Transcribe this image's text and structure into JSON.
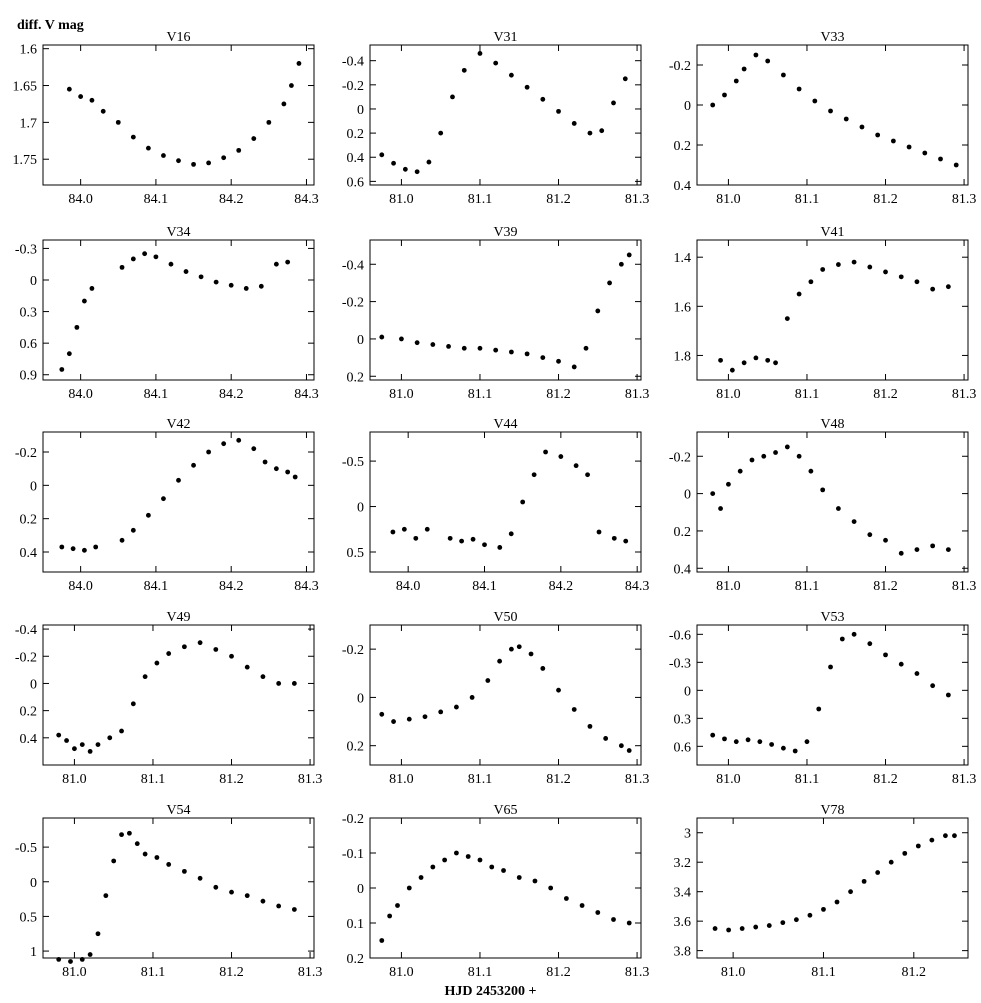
{
  "figure": {
    "ylabel": "diff. V mag",
    "xlabel": "HJD 2453200 +"
  },
  "chart_data": [
    {
      "type": "scatter",
      "title": "V16",
      "xlim": [
        83.95,
        84.31
      ],
      "ylim": [
        1.785,
        1.595
      ],
      "xticks": [
        84.0,
        84.1,
        84.2,
        84.3
      ],
      "xticklabels": [
        "84.0",
        "84.1",
        "84.2",
        "84.3"
      ],
      "yticks": [
        1.6,
        1.65,
        1.7,
        1.75
      ],
      "yticklabels": [
        "1.6",
        "1.65",
        "1.7",
        "1.75"
      ],
      "x": [
        83.985,
        84.0,
        84.015,
        84.03,
        84.05,
        84.07,
        84.09,
        84.11,
        84.13,
        84.15,
        84.17,
        84.19,
        84.21,
        84.23,
        84.25,
        84.27,
        84.28,
        84.29
      ],
      "y": [
        1.655,
        1.665,
        1.67,
        1.685,
        1.7,
        1.72,
        1.735,
        1.745,
        1.752,
        1.757,
        1.755,
        1.748,
        1.738,
        1.722,
        1.7,
        1.675,
        1.65,
        1.62
      ]
    },
    {
      "type": "scatter",
      "title": "V31",
      "xlim": [
        80.96,
        81.305
      ],
      "ylim": [
        0.63,
        -0.53
      ],
      "xticks": [
        81.0,
        81.1,
        81.2,
        81.3
      ],
      "xticklabels": [
        "81.0",
        "81.1",
        "81.2",
        "81.3"
      ],
      "yticks": [
        -0.4,
        -0.2,
        0,
        0.2,
        0.4,
        0.6
      ],
      "yticklabels": [
        "-0.4",
        "-0.2",
        "0",
        "0.2",
        "0.4",
        "0.6"
      ],
      "x": [
        80.975,
        80.99,
        81.005,
        81.02,
        81.035,
        81.05,
        81.065,
        81.08,
        81.1,
        81.12,
        81.14,
        81.16,
        81.18,
        81.2,
        81.22,
        81.24,
        81.255,
        81.27,
        81.285
      ],
      "y": [
        0.38,
        0.45,
        0.5,
        0.52,
        0.44,
        0.2,
        -0.1,
        -0.32,
        -0.46,
        -0.38,
        -0.28,
        -0.18,
        -0.08,
        0.02,
        0.12,
        0.2,
        0.18,
        -0.05,
        -0.25
      ]
    },
    {
      "type": "scatter",
      "title": "V33",
      "xlim": [
        80.96,
        81.305
      ],
      "ylim": [
        0.4,
        -0.3
      ],
      "xticks": [
        81.0,
        81.1,
        81.2,
        81.3
      ],
      "xticklabels": [
        "81.0",
        "81.1",
        "81.2",
        "81.3"
      ],
      "yticks": [
        -0.2,
        0,
        0.2,
        0.4
      ],
      "yticklabels": [
        "-0.2",
        "0",
        "0.2",
        "0.4"
      ],
      "x": [
        80.98,
        80.995,
        81.01,
        81.02,
        81.035,
        81.05,
        81.07,
        81.09,
        81.11,
        81.13,
        81.15,
        81.17,
        81.19,
        81.21,
        81.23,
        81.25,
        81.27,
        81.29
      ],
      "y": [
        0.0,
        -0.05,
        -0.12,
        -0.18,
        -0.25,
        -0.22,
        -0.15,
        -0.08,
        -0.02,
        0.03,
        0.07,
        0.11,
        0.15,
        0.18,
        0.21,
        0.24,
        0.27,
        0.3
      ]
    },
    {
      "type": "scatter",
      "title": "V34",
      "xlim": [
        83.95,
        84.31
      ],
      "ylim": [
        0.95,
        -0.38
      ],
      "xticks": [
        84.0,
        84.1,
        84.2,
        84.3
      ],
      "xticklabels": [
        "84.0",
        "84.1",
        "84.2",
        "84.3"
      ],
      "yticks": [
        -0.3,
        0,
        0.3,
        0.6,
        0.9
      ],
      "yticklabels": [
        "-0.3",
        "0",
        "0.3",
        "0.6",
        "0.9"
      ],
      "x": [
        83.975,
        83.985,
        83.995,
        84.005,
        84.015,
        84.055,
        84.07,
        84.085,
        84.1,
        84.12,
        84.14,
        84.16,
        84.18,
        84.2,
        84.22,
        84.24,
        84.26,
        84.275
      ],
      "y": [
        0.85,
        0.7,
        0.45,
        0.2,
        0.08,
        -0.12,
        -0.2,
        -0.25,
        -0.22,
        -0.15,
        -0.08,
        -0.03,
        0.02,
        0.05,
        0.08,
        0.06,
        -0.15,
        -0.17
      ]
    },
    {
      "type": "scatter",
      "title": "V39",
      "xlim": [
        80.96,
        81.305
      ],
      "ylim": [
        0.22,
        -0.53
      ],
      "xticks": [
        81.0,
        81.1,
        81.2,
        81.3
      ],
      "xticklabels": [
        "81.0",
        "81.1",
        "81.2",
        "81.3"
      ],
      "yticks": [
        -0.4,
        -0.2,
        0,
        0.2
      ],
      "yticklabels": [
        "-0.4",
        "-0.2",
        "0",
        "0.2"
      ],
      "x": [
        80.975,
        81.0,
        81.02,
        81.04,
        81.06,
        81.08,
        81.1,
        81.12,
        81.14,
        81.16,
        81.18,
        81.2,
        81.22,
        81.235,
        81.25,
        81.265,
        81.28,
        81.29
      ],
      "y": [
        -0.01,
        0.0,
        0.02,
        0.03,
        0.04,
        0.05,
        0.05,
        0.06,
        0.07,
        0.08,
        0.1,
        0.12,
        0.15,
        0.05,
        -0.15,
        -0.3,
        -0.4,
        -0.45
      ]
    },
    {
      "type": "scatter",
      "title": "V41",
      "xlim": [
        80.96,
        81.305
      ],
      "ylim": [
        1.9,
        1.33
      ],
      "xticks": [
        81.0,
        81.1,
        81.2,
        81.3
      ],
      "xticklabels": [
        "81.0",
        "81.1",
        "81.2",
        "81.3"
      ],
      "yticks": [
        1.4,
        1.6,
        1.8
      ],
      "yticklabels": [
        "1.4",
        "1.6",
        "1.8"
      ],
      "x": [
        80.99,
        81.005,
        81.02,
        81.035,
        81.05,
        81.06,
        81.075,
        81.09,
        81.105,
        81.12,
        81.14,
        81.16,
        81.18,
        81.2,
        81.22,
        81.24,
        81.26,
        81.28
      ],
      "y": [
        1.82,
        1.86,
        1.83,
        1.81,
        1.82,
        1.83,
        1.65,
        1.55,
        1.5,
        1.45,
        1.43,
        1.42,
        1.44,
        1.46,
        1.48,
        1.5,
        1.53,
        1.52
      ]
    },
    {
      "type": "scatter",
      "title": "V42",
      "xlim": [
        83.95,
        84.31
      ],
      "ylim": [
        0.52,
        -0.32
      ],
      "xticks": [
        84.0,
        84.1,
        84.2,
        84.3
      ],
      "xticklabels": [
        "84.0",
        "84.1",
        "84.2",
        "84.3"
      ],
      "yticks": [
        -0.2,
        0,
        0.2,
        0.4
      ],
      "yticklabels": [
        "-0.2",
        "0",
        "0.2",
        "0.4"
      ],
      "x": [
        83.975,
        83.99,
        84.005,
        84.02,
        84.055,
        84.07,
        84.09,
        84.11,
        84.13,
        84.15,
        84.17,
        84.19,
        84.21,
        84.23,
        84.245,
        84.26,
        84.275,
        84.285
      ],
      "y": [
        0.37,
        0.38,
        0.39,
        0.37,
        0.33,
        0.27,
        0.18,
        0.08,
        -0.03,
        -0.12,
        -0.2,
        -0.25,
        -0.27,
        -0.22,
        -0.14,
        -0.1,
        -0.08,
        -0.05
      ]
    },
    {
      "type": "scatter",
      "title": "V44",
      "xlim": [
        83.95,
        84.305
      ],
      "ylim": [
        0.72,
        -0.82
      ],
      "xticks": [
        84.0,
        84.1,
        84.2,
        84.3
      ],
      "xticklabels": [
        "84.0",
        "84.1",
        "84.2",
        "84.3"
      ],
      "yticks": [
        -0.5,
        0,
        0.5
      ],
      "yticklabels": [
        "-0.5",
        "0",
        "0.5"
      ],
      "x": [
        83.98,
        83.995,
        84.01,
        84.025,
        84.055,
        84.07,
        84.085,
        84.1,
        84.12,
        84.135,
        84.15,
        84.165,
        84.18,
        84.2,
        84.22,
        84.235,
        84.25,
        84.27,
        84.285
      ],
      "y": [
        0.28,
        0.25,
        0.35,
        0.25,
        0.35,
        0.38,
        0.36,
        0.42,
        0.45,
        0.3,
        -0.05,
        -0.35,
        -0.6,
        -0.55,
        -0.45,
        -0.35,
        0.28,
        0.35,
        0.38
      ]
    },
    {
      "type": "scatter",
      "title": "V48",
      "xlim": [
        80.96,
        81.305
      ],
      "ylim": [
        0.42,
        -0.33
      ],
      "xticks": [
        81.0,
        81.1,
        81.2,
        81.3
      ],
      "xticklabels": [
        "81.0",
        "81.1",
        "81.2",
        "81.3"
      ],
      "yticks": [
        -0.2,
        0,
        0.2,
        0.4
      ],
      "yticklabels": [
        "-0.2",
        "0",
        "0.2",
        "0.4"
      ],
      "x": [
        80.98,
        80.99,
        81.0,
        81.015,
        81.03,
        81.045,
        81.06,
        81.075,
        81.09,
        81.105,
        81.12,
        81.14,
        81.16,
        81.18,
        81.2,
        81.22,
        81.24,
        81.26,
        81.28
      ],
      "y": [
        0.0,
        0.08,
        -0.05,
        -0.12,
        -0.18,
        -0.2,
        -0.22,
        -0.25,
        -0.2,
        -0.12,
        -0.02,
        0.08,
        0.15,
        0.22,
        0.25,
        0.32,
        0.3,
        0.28,
        0.3
      ]
    },
    {
      "type": "scatter",
      "title": "V49",
      "xlim": [
        80.96,
        81.305
      ],
      "ylim": [
        0.6,
        -0.43
      ],
      "xticks": [
        81.0,
        81.1,
        81.2,
        81.3
      ],
      "xticklabels": [
        "81.0",
        "81.1",
        "81.2",
        "81.3"
      ],
      "yticks": [
        -0.4,
        -0.2,
        0,
        0.2,
        0.4
      ],
      "yticklabels": [
        "-0.4",
        "-0.2",
        "0",
        "0.2",
        "0.4"
      ],
      "x": [
        80.98,
        80.99,
        81.0,
        81.01,
        81.02,
        81.03,
        81.045,
        81.06,
        81.075,
        81.09,
        81.105,
        81.12,
        81.14,
        81.16,
        81.18,
        81.2,
        81.22,
        81.24,
        81.26,
        81.28
      ],
      "y": [
        0.38,
        0.42,
        0.48,
        0.45,
        0.5,
        0.45,
        0.4,
        0.35,
        0.15,
        -0.05,
        -0.15,
        -0.22,
        -0.27,
        -0.3,
        -0.25,
        -0.2,
        -0.12,
        -0.05,
        0.0,
        0.0
      ]
    },
    {
      "type": "scatter",
      "title": "V50",
      "xlim": [
        80.96,
        81.305
      ],
      "ylim": [
        0.28,
        -0.3
      ],
      "xticks": [
        81.0,
        81.1,
        81.2,
        81.3
      ],
      "xticklabels": [
        "81.0",
        "81.1",
        "81.2",
        "81.3"
      ],
      "yticks": [
        -0.2,
        0,
        0.2
      ],
      "yticklabels": [
        "-0.2",
        "0",
        "0.2"
      ],
      "x": [
        80.975,
        80.99,
        81.01,
        81.03,
        81.05,
        81.07,
        81.09,
        81.11,
        81.125,
        81.14,
        81.15,
        81.165,
        81.18,
        81.2,
        81.22,
        81.24,
        81.26,
        81.28,
        81.29
      ],
      "y": [
        0.07,
        0.1,
        0.09,
        0.08,
        0.06,
        0.04,
        0.0,
        -0.07,
        -0.15,
        -0.2,
        -0.21,
        -0.18,
        -0.12,
        -0.03,
        0.05,
        0.12,
        0.17,
        0.2,
        0.22
      ]
    },
    {
      "type": "scatter",
      "title": "V53",
      "xlim": [
        80.96,
        81.305
      ],
      "ylim": [
        0.8,
        -0.7
      ],
      "xticks": [
        81.0,
        81.1,
        81.2,
        81.3
      ],
      "xticklabels": [
        "81.0",
        "81.1",
        "81.2",
        "81.3"
      ],
      "yticks": [
        -0.6,
        -0.3,
        0,
        0.3,
        0.6
      ],
      "yticklabels": [
        "-0.6",
        "-0.3",
        "0",
        "0.3",
        "0.6"
      ],
      "x": [
        80.98,
        80.995,
        81.01,
        81.025,
        81.04,
        81.055,
        81.07,
        81.085,
        81.1,
        81.115,
        81.13,
        81.145,
        81.16,
        81.18,
        81.2,
        81.22,
        81.24,
        81.26,
        81.28
      ],
      "y": [
        0.48,
        0.52,
        0.55,
        0.53,
        0.55,
        0.58,
        0.62,
        0.65,
        0.55,
        0.2,
        -0.25,
        -0.55,
        -0.6,
        -0.5,
        -0.38,
        -0.28,
        -0.18,
        -0.05,
        0.05
      ]
    },
    {
      "type": "scatter",
      "title": "V54",
      "xlim": [
        80.96,
        81.305
      ],
      "ylim": [
        1.1,
        -0.92
      ],
      "xticks": [
        81.0,
        81.1,
        81.2,
        81.3
      ],
      "xticklabels": [
        "81.0",
        "81.1",
        "81.2",
        "81.3"
      ],
      "yticks": [
        -0.5,
        0,
        0.5,
        1
      ],
      "yticklabels": [
        "-0.5",
        "0",
        "0.5",
        "1"
      ],
      "x": [
        80.98,
        80.995,
        81.01,
        81.02,
        81.03,
        81.04,
        81.05,
        81.06,
        81.07,
        81.08,
        81.09,
        81.105,
        81.12,
        81.14,
        81.16,
        81.18,
        81.2,
        81.22,
        81.24,
        81.26,
        81.28
      ],
      "y": [
        1.12,
        1.15,
        1.12,
        1.05,
        0.75,
        0.2,
        -0.3,
        -0.68,
        -0.7,
        -0.55,
        -0.4,
        -0.35,
        -0.25,
        -0.15,
        -0.05,
        0.08,
        0.15,
        0.2,
        0.28,
        0.35,
        0.4
      ]
    },
    {
      "type": "scatter",
      "title": "V65",
      "xlim": [
        80.96,
        81.305
      ],
      "ylim": [
        0.2,
        -0.2
      ],
      "xticks": [
        81.0,
        81.1,
        81.2,
        81.3
      ],
      "xticklabels": [
        "81.0",
        "81.1",
        "81.2",
        "81.3"
      ],
      "yticks": [
        -0.2,
        -0.1,
        0,
        0.1,
        0.2
      ],
      "yticklabels": [
        "-0.2",
        "-0.1",
        "0",
        "0.1",
        "0.2"
      ],
      "x": [
        80.975,
        80.985,
        80.995,
        81.01,
        81.025,
        81.04,
        81.055,
        81.07,
        81.085,
        81.1,
        81.115,
        81.13,
        81.15,
        81.17,
        81.19,
        81.21,
        81.23,
        81.25,
        81.27,
        81.29
      ],
      "y": [
        0.15,
        0.08,
        0.05,
        0.0,
        -0.03,
        -0.06,
        -0.08,
        -0.1,
        -0.09,
        -0.08,
        -0.06,
        -0.05,
        -0.03,
        -0.02,
        0.0,
        0.03,
        0.05,
        0.07,
        0.09,
        0.1
      ]
    },
    {
      "type": "scatter",
      "title": "V78",
      "xlim": [
        80.96,
        81.26
      ],
      "ylim": [
        3.85,
        2.9
      ],
      "xticks": [
        81.0,
        81.1,
        81.2
      ],
      "xticklabels": [
        "81.0",
        "81.1",
        "81.2"
      ],
      "yticks": [
        3,
        3.2,
        3.4,
        3.6,
        3.8
      ],
      "yticklabels": [
        "3",
        "3.2",
        "3.4",
        "3.6",
        "3.8"
      ],
      "x": [
        80.98,
        80.995,
        81.01,
        81.025,
        81.04,
        81.055,
        81.07,
        81.085,
        81.1,
        81.115,
        81.13,
        81.145,
        81.16,
        81.175,
        81.19,
        81.205,
        81.22,
        81.235,
        81.245
      ],
      "y": [
        3.65,
        3.66,
        3.65,
        3.64,
        3.63,
        3.61,
        3.59,
        3.56,
        3.52,
        3.47,
        3.4,
        3.33,
        3.27,
        3.2,
        3.14,
        3.09,
        3.05,
        3.02,
        3.02
      ]
    }
  ]
}
